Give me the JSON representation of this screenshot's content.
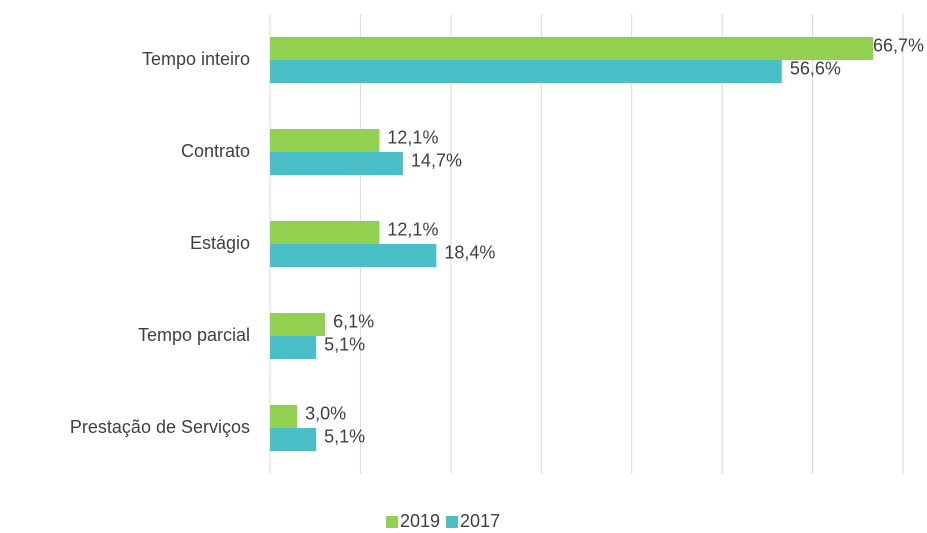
{
  "chart_data": {
    "type": "barh",
    "categories": [
      "Tempo inteiro",
      "Contrato",
      "Estágio",
      "Tempo parcial",
      "Prestação de Serviços"
    ],
    "series": [
      {
        "name": "2019",
        "color": "#92d050",
        "values": [
          66.7,
          12.1,
          12.1,
          6.1,
          3.0
        ],
        "value_labels": [
          "66,7%",
          "12,1%",
          "12,1%",
          "6,1%",
          "3,0%"
        ]
      },
      {
        "name": "2017",
        "color": "#4bbfc8",
        "values": [
          56.6,
          14.7,
          18.4,
          5.1,
          5.1
        ],
        "value_labels": [
          "56,6%",
          "14,7%",
          "18,4%",
          "5,1%",
          "5,1%"
        ]
      }
    ],
    "xlim": [
      0,
      70
    ],
    "xticks": [
      0,
      10,
      20,
      30,
      40,
      50,
      60,
      70
    ],
    "grid": true,
    "legend": "bottom"
  }
}
